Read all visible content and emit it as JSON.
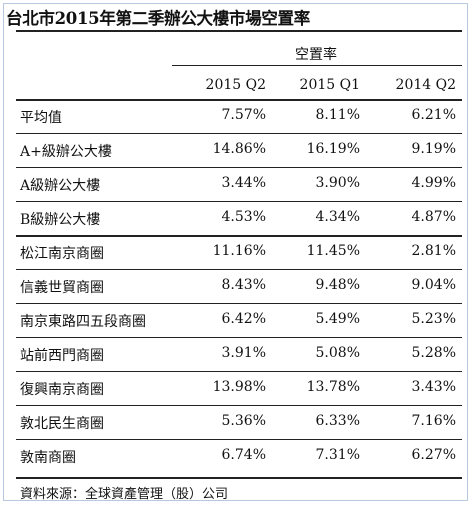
{
  "title": "台北市2015年第二季辦公大樓市場空置率",
  "header_group": "空置率",
  "columns": [
    "2015 Q2",
    "2015 Q1",
    "2014 Q2"
  ],
  "rows": [
    {
      "label": "平均值",
      "values": [
        "7.57%",
        "8.11%",
        "6.21%"
      ]
    },
    {
      "label": "A+級辦公大樓",
      "values": [
        "14.86%",
        "16.19%",
        "9.19%"
      ]
    },
    {
      "label": "A級辦公大樓",
      "values": [
        "3.44%",
        "3.90%",
        "4.99%"
      ]
    },
    {
      "label": "B級辦公大樓",
      "values": [
        "4.53%",
        "4.34%",
        "4.87%"
      ]
    },
    {
      "label": "松江南京商圈",
      "values": [
        "11.16%",
        "11.45%",
        "2.81%"
      ]
    },
    {
      "label": "信義世貿商圈",
      "values": [
        "8.43%",
        "9.48%",
        "9.04%"
      ]
    },
    {
      "label": "南京東路四五段商圈",
      "values": [
        "6.42%",
        "5.49%",
        "5.23%"
      ]
    },
    {
      "label": "站前西門商圈",
      "values": [
        "3.91%",
        "5.08%",
        "5.28%"
      ]
    },
    {
      "label": "復興南京商圈",
      "values": [
        "13.98%",
        "13.78%",
        "3.43%"
      ]
    },
    {
      "label": "敦北民生商圈",
      "values": [
        "5.36%",
        "6.33%",
        "7.16%"
      ]
    },
    {
      "label": "敦南商圈",
      "values": [
        "6.74%",
        "7.31%",
        "6.27%"
      ]
    }
  ],
  "source_note": "資料來源：全球資產管理（股）公司"
}
